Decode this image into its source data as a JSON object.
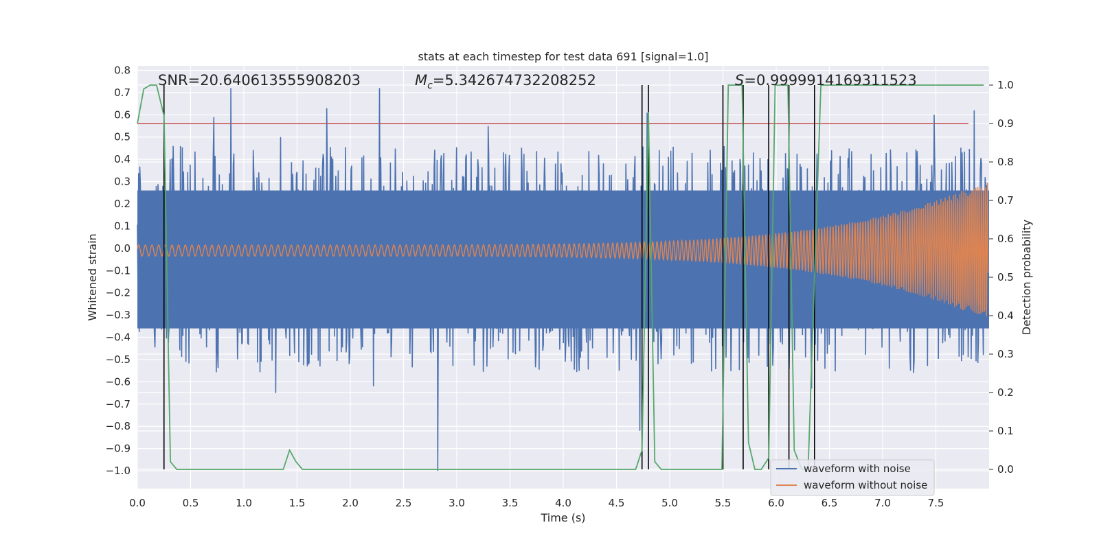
{
  "chart_data": {
    "type": "line",
    "title": "stats at each timestep for test data 691 [signal=1.0]",
    "xlabel": "Time (s)",
    "ylabel_left": "Whitened strain",
    "ylabel_right": "Detection probability",
    "xlim": [
      0.0,
      8.0
    ],
    "ylim_left": [
      -1.08,
      0.82
    ],
    "ylim_right": [
      -0.05,
      1.05
    ],
    "x_ticks": [
      "0.0",
      "0.5",
      "1.0",
      "1.5",
      "2.0",
      "2.5",
      "3.0",
      "3.5",
      "4.0",
      "4.5",
      "5.0",
      "5.5",
      "6.0",
      "6.5",
      "7.0",
      "7.5"
    ],
    "y_ticks_left": [
      "0.8",
      "0.7",
      "0.6",
      "0.5",
      "0.4",
      "0.3",
      "0.2",
      "0.1",
      "0.0",
      "−0.1",
      "−0.2",
      "−0.3",
      "−0.4",
      "−0.5",
      "−0.6",
      "−0.7",
      "−0.8",
      "−0.9",
      "−1.0"
    ],
    "y_ticks_right": [
      "1.0",
      "0.9",
      "0.8",
      "0.7",
      "0.6",
      "0.5",
      "0.4",
      "0.3",
      "0.2",
      "0.1",
      "0.0"
    ],
    "annotations": {
      "snr": "SNR=20.640613555908203",
      "mc_symbol": "M",
      "mc_sub": "c",
      "mc_value": "=5.342674732208252",
      "s_symbol": "S",
      "s_value": "=0.9999914169311523"
    },
    "threshold": 0.9,
    "series": [
      {
        "name": "waveform with noise",
        "color": "#4c72b0",
        "envelope_upper": 0.26,
        "envelope_lower": -0.36,
        "spikes": [
          [
            0.88,
            0.72
          ],
          [
            1.78,
            0.63
          ],
          [
            2.28,
            0.72
          ],
          [
            0.72,
            0.59
          ],
          [
            2.83,
            -1.0
          ],
          [
            1.3,
            -0.65
          ],
          [
            2.22,
            -0.62
          ],
          [
            4.73,
            -0.82
          ],
          [
            4.8,
            0.61
          ],
          [
            6.35,
            -0.63
          ],
          [
            7.88,
            0.62
          ],
          [
            7.5,
            0.6
          ],
          [
            1.35,
            0.5
          ],
          [
            3.3,
            0.55
          ]
        ]
      },
      {
        "name": "waveform without noise",
        "color": "#dd8452",
        "amplitude_start": 0.025,
        "amplitude_end": 0.32
      },
      {
        "name": "detection probability",
        "color": "#55a868",
        "x": [
          0.0,
          0.06,
          0.12,
          0.18,
          0.25,
          0.31,
          0.37,
          1.37,
          1.43,
          1.49,
          1.55,
          4.68,
          4.74,
          4.8,
          4.86,
          4.92,
          5.49,
          5.55,
          5.68,
          5.74,
          5.8,
          5.86,
          5.93,
          5.99,
          6.05,
          6.11,
          6.17,
          6.24,
          6.3,
          6.36,
          6.42,
          7.95
        ],
        "values": [
          0.9,
          0.99,
          1.0,
          1.0,
          0.92,
          0.02,
          0.0,
          0.0,
          0.05,
          0.02,
          0.0,
          0.0,
          0.05,
          0.93,
          0.02,
          0.0,
          0.0,
          1.0,
          1.0,
          0.07,
          0.0,
          0.0,
          0.03,
          1.0,
          1.0,
          1.0,
          0.05,
          0.0,
          0.0,
          0.5,
          1.0,
          1.0
        ]
      }
    ],
    "vertical_lines_x": [
      0.25,
      4.74,
      4.8,
      5.5,
      5.69,
      5.93,
      6.12,
      6.36
    ],
    "legend": {
      "placement": "bottom-right",
      "entries": [
        "waveform with noise",
        "waveform without noise"
      ]
    }
  }
}
